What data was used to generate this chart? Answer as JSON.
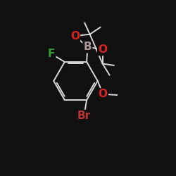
{
  "background_color": "#111111",
  "bond_color": "#d8d8d8",
  "atom_colors": {
    "B": "#b09898",
    "O": "#dd2222",
    "F": "#339933",
    "Br": "#bb3333",
    "C": "#d8d8d8"
  },
  "lw": 1.4,
  "fs_large": 11,
  "fs_small": 9
}
